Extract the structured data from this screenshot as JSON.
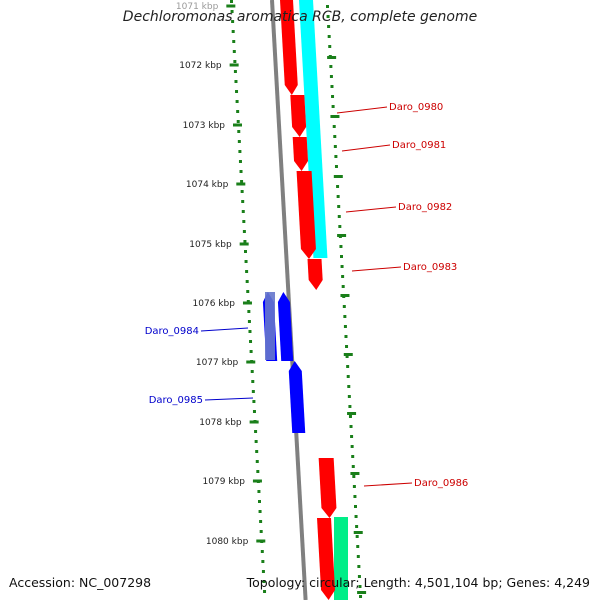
{
  "title": "Dechloromonas aromatica RCB, complete genome",
  "footer": {
    "accession": "Accession: NC_007298",
    "summary": "Topology: circular; Length: 4,501,104 bp; Genes: 4,249"
  },
  "colors": {
    "background": "#ffffff",
    "backbone": "#808080",
    "tick": "#1a7f1a",
    "forward_gene": "#ff0000",
    "reverse_gene": "#0000ff",
    "feature_cyan": "#00ffff",
    "feature_green": "#00ee88",
    "forward_label": "#cc0000",
    "reverse_label": "#0000cc"
  },
  "ticks": [
    {
      "label": "1071 kbp",
      "faded": true
    },
    {
      "label": "1072 kbp"
    },
    {
      "label": "1073 kbp"
    },
    {
      "label": "1074 kbp"
    },
    {
      "label": "1075 kbp"
    },
    {
      "label": "1076 kbp"
    },
    {
      "label": "1077 kbp"
    },
    {
      "label": "1078 kbp"
    },
    {
      "label": "1079 kbp"
    },
    {
      "label": "1080 kbp"
    }
  ],
  "genes": [
    {
      "label": "Daro_0980",
      "strand": "forward"
    },
    {
      "label": "Daro_0981",
      "strand": "forward"
    },
    {
      "label": "Daro_0982",
      "strand": "forward"
    },
    {
      "label": "Daro_0983",
      "strand": "forward"
    },
    {
      "label": "Daro_0984",
      "strand": "reverse"
    },
    {
      "label": "Daro_0985",
      "strand": "reverse"
    },
    {
      "label": "Daro_0986",
      "strand": "forward"
    }
  ]
}
